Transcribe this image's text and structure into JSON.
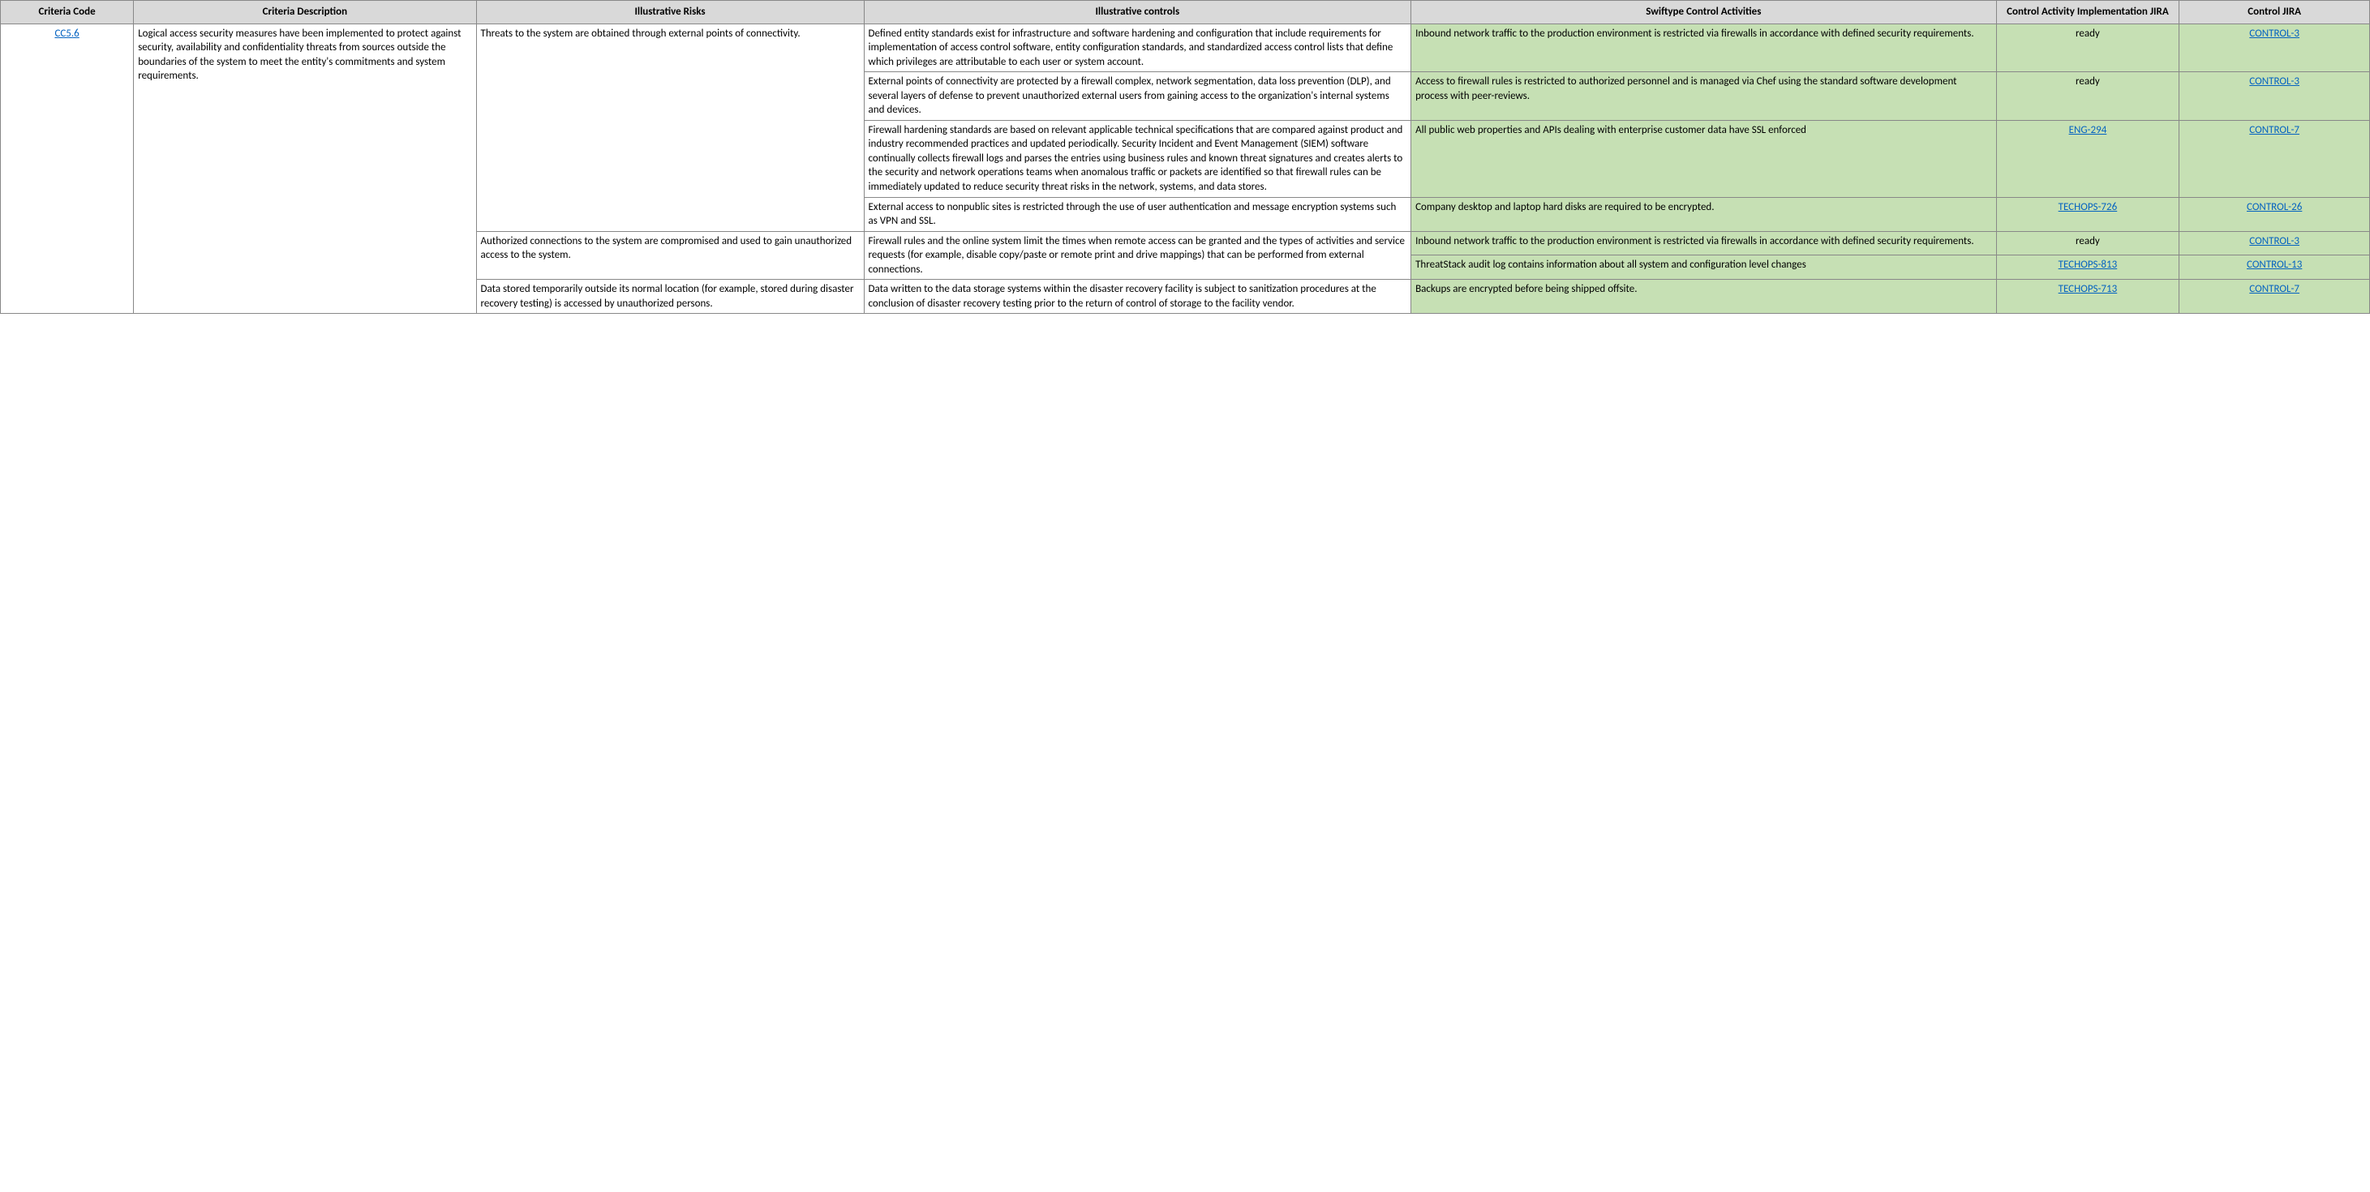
{
  "headers": {
    "code": "Criteria Code",
    "desc": "Criteria Description",
    "risks": "Illustrative Risks",
    "controls": "Illustrative controls",
    "activities": "Swiftype Control Activities",
    "impl": "Control Activity Implementation JIRA",
    "jira": "Control JIRA"
  },
  "criteria": {
    "code": "CC5.6",
    "description": "Logical access security measures have been implemented to protect against security, availability and confidentiality threats from sources outside the boundaries of the system to meet the entity's commitments and system requirements."
  },
  "risks": {
    "r1": "Threats to the system are obtained through external points of connectivity.",
    "r2": "Authorized connections to the system are compromised and used to gain unauthorized access to the system.",
    "r3": "Data stored temporarily outside its normal location (for example, stored during disaster recovery testing) is accessed by unauthorized persons."
  },
  "controls": {
    "c1": "Defined entity standards exist for infrastructure and software hardening and configuration that include requirements for implementation of access control software, entity configuration standards, and standardized access control lists that define which privileges are attributable to each user or system account.",
    "c2": "External points of connectivity are protected by a firewall complex, network segmentation, data loss prevention (DLP), and several layers of defense to prevent unauthorized external users from gaining access to the organization's internal systems and devices.",
    "c3": "Firewall hardening standards are based on relevant applicable technical specifications that are compared against product and industry recommended practices and updated periodically. Security Incident and Event Management (SIEM) software continually collects firewall logs and parses the entries using business rules and known threat signatures and creates alerts to the security and network operations teams when anomalous traffic or packets are identified so that firewall rules can be immediately updated to reduce security threat risks in the network, systems, and data stores.",
    "c4": "External access to nonpublic sites is restricted through the use of user authentication and message encryption systems such as VPN and SSL.",
    "c5": "Firewall rules and the online system limit the times when remote access can be granted and the types of activities and service requests (for example, disable copy/paste or remote print and drive mappings) that can be performed from external connections.",
    "c6": "Data written to the data storage systems within the disaster recovery facility is subject to sanitization procedures at the conclusion of disaster recovery testing prior to the return of control of storage to the facility vendor."
  },
  "activities": {
    "a1": "Inbound network traffic to the production environment is restricted via firewalls in accordance with defined security requirements.",
    "a2": "Access to firewall rules is restricted to authorized personnel and is managed via Chef using the standard software development process with peer-reviews.",
    "a3": "All public web properties and APIs dealing with enterprise customer data have SSL enforced",
    "a4": "Company desktop and laptop hard disks are required to be encrypted.",
    "a5": "Inbound network traffic to the production environment is restricted via firewalls in accordance with defined security requirements.",
    "a6": "ThreatStack audit log contains information about all system and configuration level changes",
    "a7": "Backups are encrypted before being shipped offsite."
  },
  "impl": {
    "i1": "ready",
    "i2": "ready",
    "i3": "ENG-294",
    "i4": "TECHOPS-726",
    "i5": "ready",
    "i6": "TECHOPS-813",
    "i7": "TECHOPS-713"
  },
  "jira": {
    "j1": "CONTROL-3",
    "j2": "CONTROL-3",
    "j3": "CONTROL-7",
    "j4": "CONTROL-26",
    "j5": "CONTROL-3",
    "j6": "CONTROL-13",
    "j7": "CONTROL-7"
  }
}
